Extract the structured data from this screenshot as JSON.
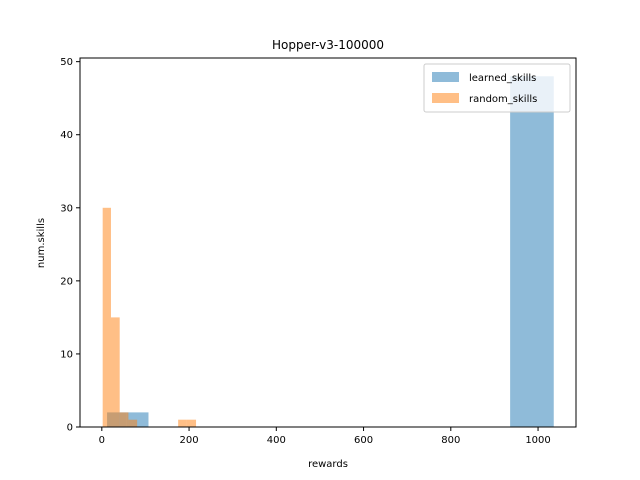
{
  "chart_data": {
    "type": "bar",
    "title": "Hopper-v3-100000",
    "xlabel": "rewards",
    "ylabel": "num.skills",
    "xlim": [
      -50,
      1087
    ],
    "ylim": [
      0,
      50.5
    ],
    "xticks": [
      0,
      200,
      400,
      600,
      800,
      1000
    ],
    "yticks": [
      0,
      10,
      20,
      30,
      40,
      50
    ],
    "grid": false,
    "legend_position": "top-right",
    "series": [
      {
        "name": "learned_skills",
        "color": "#1f77b4",
        "alpha": 0.5,
        "bins": [
          {
            "x0": 12,
            "x1": 57,
            "count": 2
          },
          {
            "x0": 57,
            "x1": 107,
            "count": 2
          },
          {
            "x0": 936,
            "x1": 1036,
            "count": 48
          }
        ]
      },
      {
        "name": "random_skills",
        "color": "#ff7f0e",
        "alpha": 0.5,
        "bins": [
          {
            "x0": 2,
            "x1": 21,
            "count": 30
          },
          {
            "x0": 21,
            "x1": 41,
            "count": 15
          },
          {
            "x0": 41,
            "x1": 61,
            "count": 2
          },
          {
            "x0": 61,
            "x1": 81,
            "count": 1
          },
          {
            "x0": 175,
            "x1": 195,
            "count": 1
          },
          {
            "x0": 195,
            "x1": 216,
            "count": 1
          }
        ]
      }
    ]
  }
}
